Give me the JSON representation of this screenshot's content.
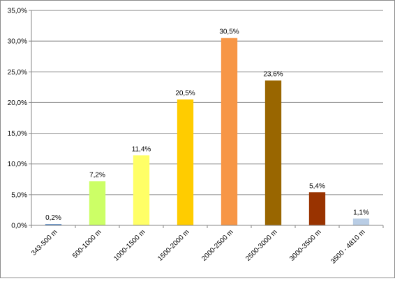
{
  "chart_data": {
    "type": "bar",
    "title": "",
    "xlabel": "",
    "ylabel": "",
    "ylim": [
      0,
      35
    ],
    "y_tick_step": 5,
    "y_tick_labels": [
      "0,0%",
      "5,0%",
      "10,0%",
      "15,0%",
      "20,0%",
      "25,0%",
      "30,0%",
      "35,0%"
    ],
    "grid": "horizontal",
    "legend": "none",
    "categories": [
      "343-500 m",
      "500-1000 m",
      "1000-1500 m",
      "1500-2000 m",
      "2000-2500 m",
      "2500-3000 m",
      "3000-3500 m",
      "3500 - 4810 m"
    ],
    "values": [
      0.2,
      7.2,
      11.4,
      20.5,
      30.5,
      23.6,
      5.4,
      1.1
    ],
    "value_labels": [
      "0,2%",
      "7,2%",
      "11,4%",
      "20,5%",
      "30,5%",
      "23,6%",
      "5,4%",
      "1,1%"
    ],
    "colors": [
      "#4f81bd",
      "#ccff66",
      "#ffff66",
      "#ffcc00",
      "#f79646",
      "#996600",
      "#993300",
      "#b9cde5"
    ]
  }
}
